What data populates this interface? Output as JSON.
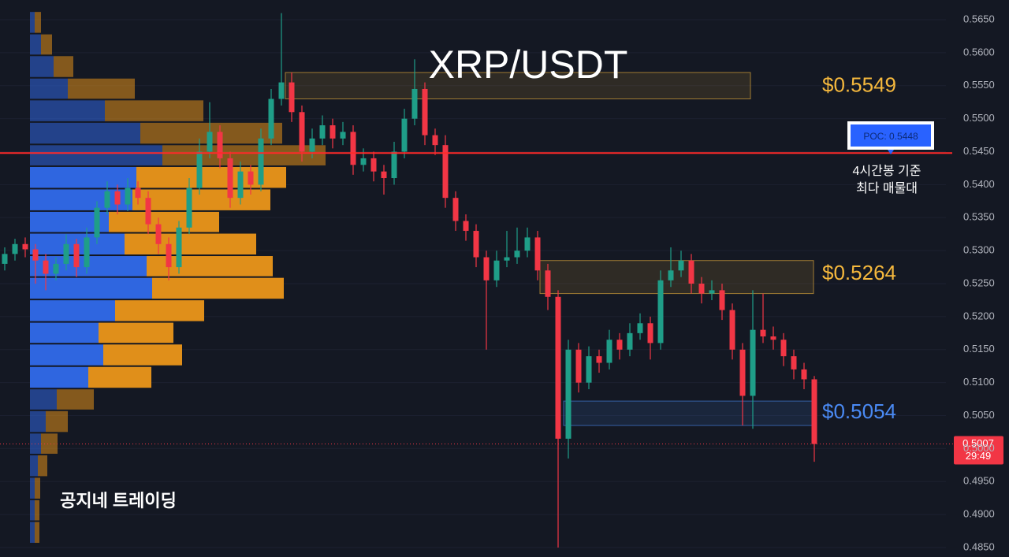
{
  "chart_data": {
    "type": "candlestick",
    "title": "XRP/USDT",
    "watermark": "공지네 트레이딩",
    "ylim": [
      0.48357,
      0.56799
    ],
    "yticks": [
      {
        "value": 0.485,
        "label": "0.4850"
      },
      {
        "value": 0.49,
        "label": "0.4900"
      },
      {
        "value": 0.495,
        "label": "0.4950"
      },
      {
        "value": 0.5,
        "label": "0.5000"
      },
      {
        "value": 0.505,
        "label": "0.5050"
      },
      {
        "value": 0.51,
        "label": "0.5100"
      },
      {
        "value": 0.515,
        "label": "0.5150"
      },
      {
        "value": 0.52,
        "label": "0.5200"
      },
      {
        "value": 0.525,
        "label": "0.5250"
      },
      {
        "value": 0.53,
        "label": "0.5300"
      },
      {
        "value": 0.535,
        "label": "0.5350"
      },
      {
        "value": 0.54,
        "label": "0.5400"
      },
      {
        "value": 0.545,
        "label": "0.5450"
      },
      {
        "value": 0.55,
        "label": "0.5500"
      },
      {
        "value": 0.555,
        "label": "0.5550"
      },
      {
        "value": 0.56,
        "label": "0.5600"
      },
      {
        "value": 0.565,
        "label": "0.5650"
      }
    ],
    "up_color": "#1f9e88",
    "down_color": "#f23645",
    "ohlc": [
      [
        0.528,
        0.5305,
        0.527,
        0.5295
      ],
      [
        0.5295,
        0.5318,
        0.5285,
        0.531
      ],
      [
        0.531,
        0.532,
        0.529,
        0.5302
      ],
      [
        0.5302,
        0.531,
        0.525,
        0.5285
      ],
      [
        0.5285,
        0.5295,
        0.524,
        0.5265
      ],
      [
        0.5265,
        0.529,
        0.5255,
        0.528
      ],
      [
        0.528,
        0.5325,
        0.527,
        0.531
      ],
      [
        0.531,
        0.5318,
        0.526,
        0.5275
      ],
      [
        0.5275,
        0.5335,
        0.5265,
        0.532
      ],
      [
        0.532,
        0.5375,
        0.531,
        0.5365
      ],
      [
        0.5365,
        0.5405,
        0.5355,
        0.539
      ],
      [
        0.539,
        0.54,
        0.5355,
        0.537
      ],
      [
        0.537,
        0.541,
        0.536,
        0.5395
      ],
      [
        0.5395,
        0.5405,
        0.537,
        0.538
      ],
      [
        0.538,
        0.539,
        0.5325,
        0.534
      ],
      [
        0.534,
        0.535,
        0.5295,
        0.531
      ],
      [
        0.531,
        0.532,
        0.5255,
        0.5275
      ],
      [
        0.5275,
        0.5345,
        0.5265,
        0.5335
      ],
      [
        0.5335,
        0.541,
        0.5325,
        0.5395
      ],
      [
        0.5395,
        0.547,
        0.5385,
        0.545
      ],
      [
        0.545,
        0.5525,
        0.544,
        0.548
      ],
      [
        0.548,
        0.549,
        0.5425,
        0.544
      ],
      [
        0.544,
        0.545,
        0.5365,
        0.538
      ],
      [
        0.538,
        0.5435,
        0.537,
        0.542
      ],
      [
        0.542,
        0.543,
        0.5385,
        0.54
      ],
      [
        0.54,
        0.5485,
        0.539,
        0.547
      ],
      [
        0.547,
        0.5545,
        0.546,
        0.553
      ],
      [
        0.553,
        0.566,
        0.552,
        0.5555
      ],
      [
        0.5555,
        0.557,
        0.5495,
        0.551
      ],
      [
        0.551,
        0.552,
        0.5435,
        0.545
      ],
      [
        0.545,
        0.5485,
        0.544,
        0.547
      ],
      [
        0.547,
        0.5505,
        0.546,
        0.549
      ],
      [
        0.549,
        0.55,
        0.5455,
        0.547
      ],
      [
        0.547,
        0.5495,
        0.546,
        0.548
      ],
      [
        0.548,
        0.549,
        0.5415,
        0.543
      ],
      [
        0.543,
        0.5455,
        0.542,
        0.544
      ],
      [
        0.544,
        0.545,
        0.5405,
        0.542
      ],
      [
        0.542,
        0.543,
        0.5385,
        0.541
      ],
      [
        0.541,
        0.5465,
        0.54,
        0.545
      ],
      [
        0.545,
        0.5515,
        0.544,
        0.55
      ],
      [
        0.55,
        0.559,
        0.549,
        0.5545
      ],
      [
        0.5545,
        0.5555,
        0.546,
        0.5475
      ],
      [
        0.5475,
        0.5485,
        0.5445,
        0.546
      ],
      [
        0.546,
        0.5475,
        0.5365,
        0.538
      ],
      [
        0.538,
        0.539,
        0.533,
        0.5345
      ],
      [
        0.5345,
        0.5355,
        0.5315,
        0.533
      ],
      [
        0.533,
        0.534,
        0.5275,
        0.529
      ],
      [
        0.529,
        0.53,
        0.515,
        0.5255
      ],
      [
        0.5255,
        0.53,
        0.5245,
        0.5285
      ],
      [
        0.5285,
        0.533,
        0.5275,
        0.529
      ],
      [
        0.529,
        0.5335,
        0.528,
        0.53
      ],
      [
        0.53,
        0.5335,
        0.529,
        0.532
      ],
      [
        0.532,
        0.533,
        0.5255,
        0.527
      ],
      [
        0.527,
        0.528,
        0.521,
        0.523
      ],
      [
        0.523,
        0.524,
        0.485,
        0.5015
      ],
      [
        0.5015,
        0.5165,
        0.4985,
        0.515
      ],
      [
        0.515,
        0.516,
        0.5085,
        0.51
      ],
      [
        0.51,
        0.5155,
        0.509,
        0.514
      ],
      [
        0.514,
        0.515,
        0.5115,
        0.513
      ],
      [
        0.513,
        0.518,
        0.512,
        0.5165
      ],
      [
        0.5165,
        0.5175,
        0.5135,
        0.515
      ],
      [
        0.515,
        0.519,
        0.514,
        0.5175
      ],
      [
        0.5175,
        0.5205,
        0.5165,
        0.519
      ],
      [
        0.519,
        0.52,
        0.5135,
        0.516
      ],
      [
        0.516,
        0.527,
        0.515,
        0.5255
      ],
      [
        0.5255,
        0.5305,
        0.5245,
        0.527
      ],
      [
        0.527,
        0.53,
        0.526,
        0.5285
      ],
      [
        0.5285,
        0.5295,
        0.5235,
        0.525
      ],
      [
        0.525,
        0.526,
        0.522,
        0.5235
      ],
      [
        0.5235,
        0.5255,
        0.5225,
        0.524
      ],
      [
        0.524,
        0.525,
        0.5195,
        0.521
      ],
      [
        0.521,
        0.522,
        0.5135,
        0.515
      ],
      [
        0.515,
        0.516,
        0.5035,
        0.508
      ],
      [
        0.508,
        0.524,
        0.503,
        0.518
      ],
      [
        0.518,
        0.5235,
        0.516,
        0.517
      ],
      [
        0.517,
        0.5185,
        0.515,
        0.5165
      ],
      [
        0.5165,
        0.5175,
        0.5125,
        0.514
      ],
      [
        0.514,
        0.515,
        0.5105,
        0.512
      ],
      [
        0.512,
        0.513,
        0.509,
        0.5105
      ],
      [
        0.5105,
        0.511,
        0.498,
        0.5007
      ]
    ],
    "volume_profile": {
      "bins": [
        0.4856,
        0.489,
        0.4923,
        0.4957,
        0.4991,
        0.5024,
        0.5058,
        0.5091,
        0.5125,
        0.5159,
        0.5192,
        0.5226,
        0.526,
        0.5293,
        0.5327,
        0.536,
        0.5394,
        0.5428,
        0.5461,
        0.5495,
        0.5529,
        0.5562,
        0.5596,
        0.5629,
        0.5663
      ],
      "buy": [
        6,
        6,
        6,
        10,
        14,
        20,
        34,
        74,
        93,
        87,
        108,
        155,
        148,
        120,
        100,
        130,
        135,
        168,
        140,
        95,
        48,
        30,
        14,
        6
      ],
      "sell": [
        6,
        6,
        7,
        12,
        21,
        28,
        47,
        80,
        100,
        95,
        113,
        167,
        160,
        167,
        140,
        175,
        190,
        207,
        180,
        125,
        85,
        25,
        14,
        8
      ],
      "buy_color": "#2f66e0",
      "sell_color": "#e08f1a"
    },
    "zones": [
      {
        "label": "$0.5549",
        "value": 0.5549,
        "low": 0.553,
        "high": 0.557,
        "color": "#f5b83d"
      },
      {
        "label": "$0.5264",
        "value": 0.5264,
        "low": 0.5235,
        "high": 0.5285,
        "color": "#f5b83d"
      },
      {
        "label": "$0.5054",
        "value": 0.5054,
        "low": 0.5035,
        "high": 0.5072,
        "color": "#4a8af4"
      }
    ],
    "poc": {
      "label": "POC: 0.5448",
      "value": 0.5448,
      "note_lines": [
        "4시간봉 기준",
        "최다 매물대"
      ]
    },
    "last_price": {
      "value": 0.5007,
      "countdown": "29:49"
    }
  }
}
